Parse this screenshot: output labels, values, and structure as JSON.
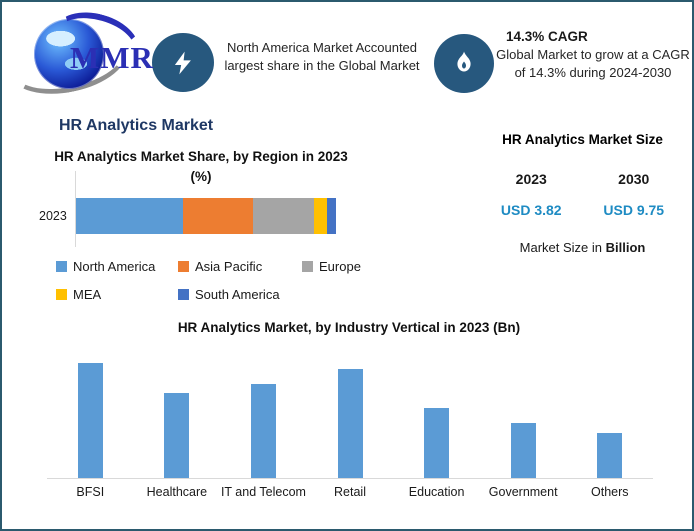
{
  "header": {
    "logo": {
      "text": "MMR"
    },
    "highlight_left": {
      "icon": "lightning-bolt",
      "icon_bg": "#27587E",
      "text": "North America Market Accounted largest share in the Global Market"
    },
    "highlight_right": {
      "icon": "flame",
      "icon_bg": "#27587E",
      "title": "14.3% CAGR",
      "text": "Global Market to grow at a CAGR of 14.3% during 2024-2030"
    }
  },
  "main": {
    "page_title": "HR Analytics Market",
    "page_title_color": "#1F3864"
  },
  "market_size_panel": {
    "title": "HR Analytics Market Size",
    "years": [
      "2023",
      "2030"
    ],
    "values": [
      "USD 3.82",
      "USD 9.75"
    ],
    "value_color": "#1E8BC3",
    "footer_prefix": "Market Size in ",
    "footer_bold": "Billion"
  },
  "chart_data": [
    {
      "type": "bar",
      "variant": "horizontal-stacked",
      "title": "HR Analytics Market Share, by Region in 2023 (%)",
      "categories": [
        "2023"
      ],
      "unit": "%",
      "legend_position": "bottom",
      "values_are_estimates": true,
      "series": [
        {
          "name": "North America",
          "value": 41,
          "color": "#5B9BD5"
        },
        {
          "name": "Asia Pacific",
          "value": 27,
          "color": "#ED7D31"
        },
        {
          "name": "Europe",
          "value": 23.5,
          "color": "#A5A5A5"
        },
        {
          "name": "MEA",
          "value": 5,
          "color": "#FFC000"
        },
        {
          "name": "South America",
          "value": 3.5,
          "color": "#4472C4"
        }
      ]
    },
    {
      "type": "bar",
      "variant": "vertical",
      "title": "HR Analytics Market, by Industry Vertical in 2023 (Bn)",
      "categories": [
        "BFSI",
        "Healthcare",
        "IT and Telecom",
        "Retail",
        "Education",
        "Government",
        "Others"
      ],
      "values": [
        0.77,
        0.57,
        0.63,
        0.73,
        0.47,
        0.37,
        0.3
      ],
      "bar_color": "#5B9BD5",
      "unit": "Bn",
      "ylim": [
        0,
        0.8
      ],
      "grid": false,
      "values_are_estimates": true
    }
  ]
}
